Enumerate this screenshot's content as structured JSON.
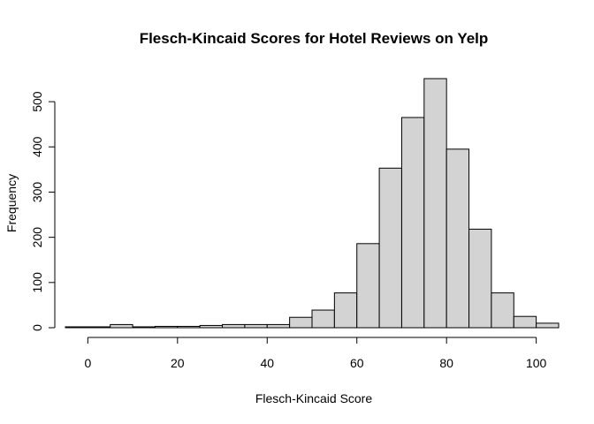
{
  "chart_data": {
    "type": "bar",
    "title": "Flesch-Kincaid Scores for Hotel Reviews on Yelp",
    "xlabel": "Flesch-Kincaid Score",
    "ylabel": "Frequency",
    "bin_width": 5,
    "bins": [
      {
        "start": -5,
        "end": 0,
        "value": 2
      },
      {
        "start": 0,
        "end": 5,
        "value": 2
      },
      {
        "start": 5,
        "end": 10,
        "value": 7
      },
      {
        "start": 10,
        "end": 15,
        "value": 2
      },
      {
        "start": 15,
        "end": 20,
        "value": 3
      },
      {
        "start": 20,
        "end": 25,
        "value": 3
      },
      {
        "start": 25,
        "end": 30,
        "value": 5
      },
      {
        "start": 30,
        "end": 35,
        "value": 7
      },
      {
        "start": 35,
        "end": 40,
        "value": 7
      },
      {
        "start": 40,
        "end": 45,
        "value": 7
      },
      {
        "start": 45,
        "end": 50,
        "value": 23
      },
      {
        "start": 50,
        "end": 55,
        "value": 39
      },
      {
        "start": 55,
        "end": 60,
        "value": 77
      },
      {
        "start": 60,
        "end": 65,
        "value": 186
      },
      {
        "start": 65,
        "end": 70,
        "value": 353
      },
      {
        "start": 70,
        "end": 75,
        "value": 465
      },
      {
        "start": 75,
        "end": 80,
        "value": 551
      },
      {
        "start": 80,
        "end": 85,
        "value": 395
      },
      {
        "start": 85,
        "end": 90,
        "value": 218
      },
      {
        "start": 90,
        "end": 95,
        "value": 77
      },
      {
        "start": 95,
        "end": 100,
        "value": 25
      },
      {
        "start": 100,
        "end": 105,
        "value": 10
      }
    ],
    "xlim": [
      -5,
      105
    ],
    "ylim": [
      0,
      551
    ],
    "x_ticks": [
      0,
      20,
      40,
      60,
      80,
      100
    ],
    "y_ticks": [
      0,
      100,
      200,
      300,
      400,
      500
    ],
    "grid": false,
    "legend": "none",
    "colors": {
      "bar_fill": "#d3d3d3",
      "bar_stroke": "#000000"
    }
  }
}
